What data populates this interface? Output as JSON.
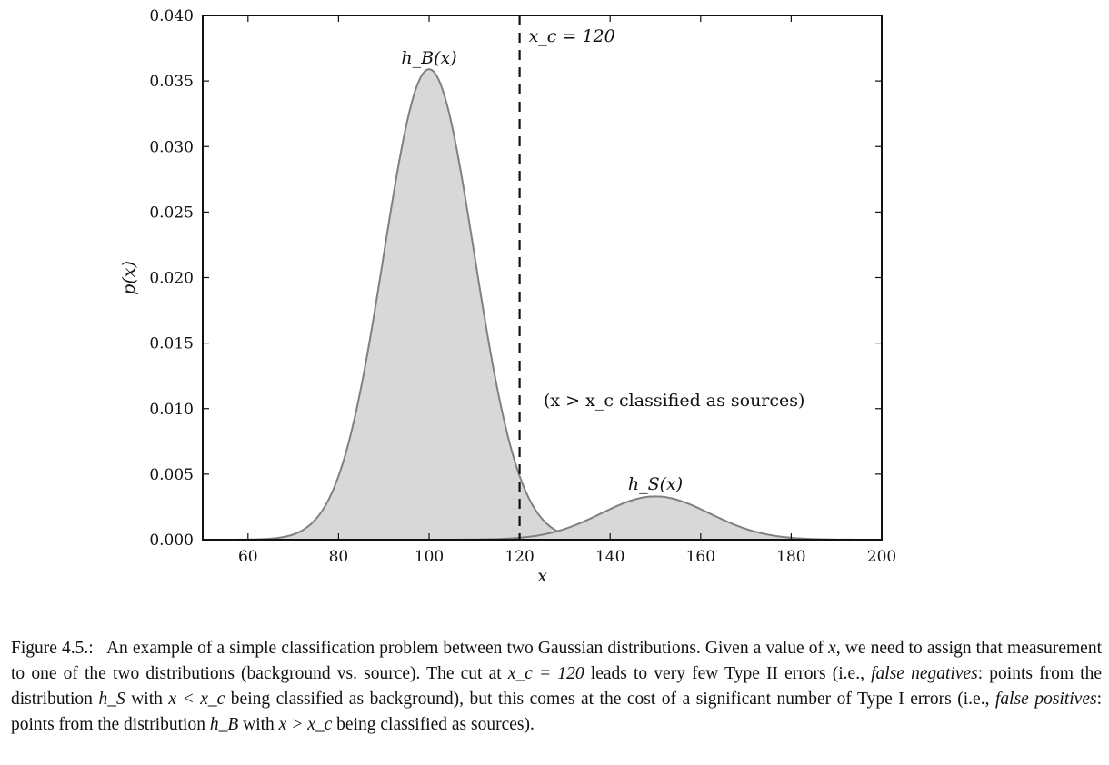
{
  "chart_data": {
    "type": "area",
    "xlabel": "x",
    "ylabel": "p(x)",
    "xlim": [
      50,
      200
    ],
    "ylim": [
      0,
      0.04
    ],
    "xticks": [
      "60",
      "80",
      "100",
      "120",
      "140",
      "160",
      "180",
      "200"
    ],
    "xtick_values": [
      60,
      80,
      100,
      120,
      140,
      160,
      180,
      200
    ],
    "yticks": [
      "0.000",
      "0.005",
      "0.010",
      "0.015",
      "0.020",
      "0.025",
      "0.030",
      "0.035",
      "0.040"
    ],
    "ytick_values": [
      0,
      0.005,
      0.01,
      0.015,
      0.02,
      0.025,
      0.03,
      0.035,
      0.04
    ],
    "grid": false,
    "series": [
      {
        "name": "h_B(x)",
        "distribution": "gaussian",
        "mean": 100,
        "sigma": 10,
        "peak": 0.0359
      },
      {
        "name": "h_S(x)",
        "distribution": "gaussian",
        "mean": 150,
        "sigma": 12,
        "peak": 0.0033
      }
    ],
    "cut": {
      "x": 120,
      "label": "x_c = 120",
      "style": "dashed"
    },
    "annotations": {
      "region": "(x > x_c classified as sources)",
      "label_b": "h_B(x)",
      "label_s": "h_S(x)"
    },
    "fill_color": "#d8d8d8",
    "line_color": "#808080"
  },
  "caption": {
    "figure_label": "Figure 4.5.:",
    "s1": "An example of a simple classification problem between two Gaussian distributions. Given a value of ",
    "x": "x",
    "s2": ", we need to assign that measurement to one of the two distributions (background vs. source). The cut at ",
    "xc_expr": "x_c = 120",
    "s3": " leads to very few Type II errors (i.e., ",
    "false_negatives": "false negatives",
    "s4": ": points from the distribution ",
    "hS": "h_S",
    "s5": " with ",
    "x_lt_xc": "x < x_c",
    "s6": " being classified as background), but this comes at the cost of a significant number of Type I errors (i.e., ",
    "false_positives": "false positives",
    "s7": ": points from the distribution ",
    "hB": "h_B",
    "s8": " with ",
    "x_gt_xc": "x > x_c",
    "s9": " being classified as sources)."
  }
}
